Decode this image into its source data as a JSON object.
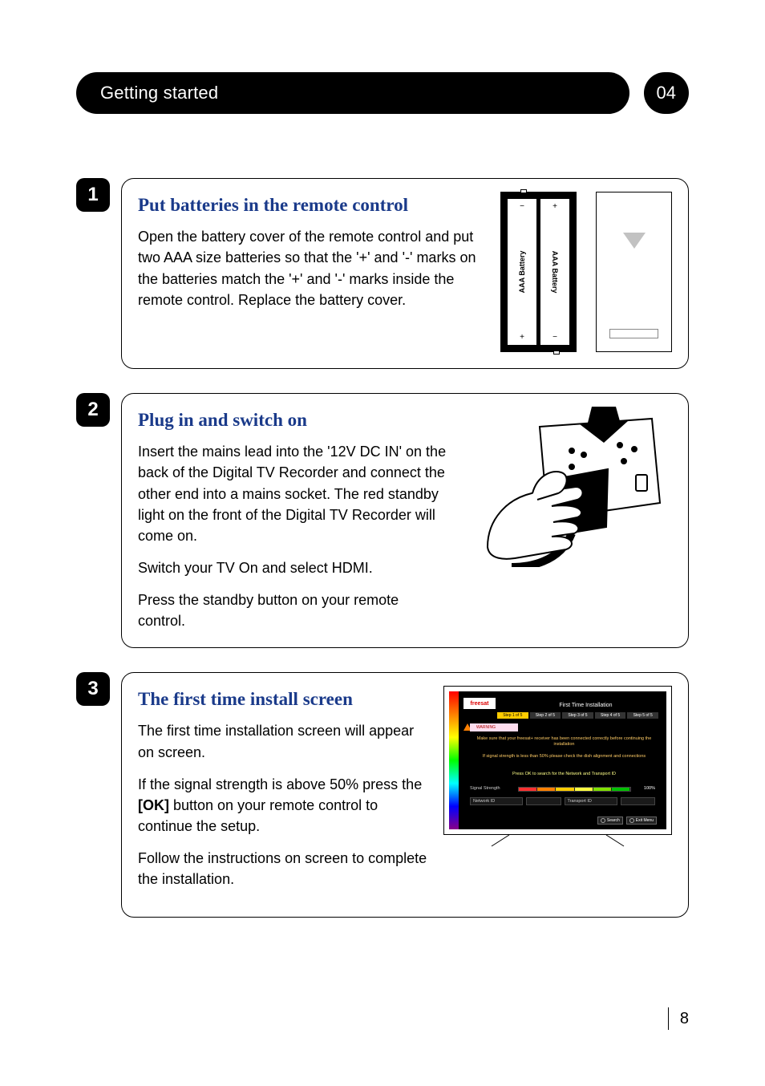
{
  "header": {
    "title": "Getting started",
    "chapter": "04"
  },
  "steps": [
    {
      "num": "1",
      "title": "Put batteries in the remote control",
      "paragraphs": [
        "Open the battery cover of the remote control and put two AAA size batteries so that the '+' and '-' marks on the batteries match the '+' and '-' marks inside the remote control. Replace the battery cover."
      ],
      "battery_label": "AAA Battery"
    },
    {
      "num": "2",
      "title": "Plug in and switch on",
      "paragraphs": [
        "Insert the mains lead into the '12V DC IN' on the back of the  Digital TV Recorder and connect the other end into a mains socket. The red standby light on the front of the Digital TV Recorder will come on.",
        "Switch your TV On and select HDMI.",
        "Press the standby button on your remote control."
      ]
    },
    {
      "num": "3",
      "title": "The first time install screen",
      "paragraphs": [
        "The first time installation screen will appear on screen.",
        "If the signal strength is above 50% press the [OK] button on your remote control to continue the setup.",
        "Follow the instructions on screen to complete the installation."
      ],
      "screenshot": {
        "logo": "freesat",
        "title": "First Time Installation",
        "tabs": [
          "Step 1 of 5",
          "Step 2 of 5",
          "Step 3 of 5",
          "Step 4 of 5",
          "Step 5 of 5"
        ],
        "active_tab_bg": "#ffcc00",
        "warning_label": "WARNING",
        "msg1": "Make sure that your freesat+ receiver has been connected correctly before continuing the installation",
        "msg2": "If signal strength is less than 50% please check the dish alignment and connections",
        "msg3": "Press OK to search for the Network and Transport ID",
        "signal_label": "Signal Strength",
        "signal_value": "100%",
        "signal_colors": [
          "#ff3030",
          "#ff8000",
          "#ffcc00",
          "#ffff40",
          "#80e000",
          "#00c000"
        ],
        "network_label": "Network ID",
        "transport_label": "Transport ID",
        "btn_search": "Search",
        "btn_exit": "Exit Menu"
      }
    }
  ],
  "bold_token": "[OK]",
  "page_number": "8",
  "colors": {
    "title_blue": "#1a3a8a",
    "black": "#000000",
    "white": "#ffffff"
  }
}
